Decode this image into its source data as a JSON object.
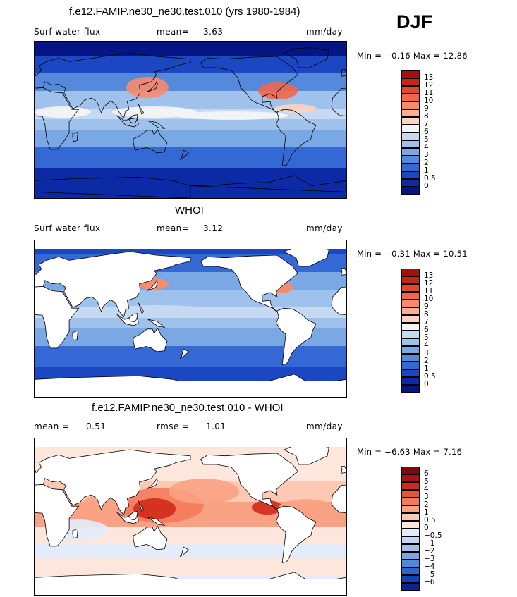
{
  "season": "DJF",
  "chart_data": [
    {
      "type": "heatmap",
      "title": "f.e12.FAMIP.ne30_ne30.test.010 (yrs 1980-1984)",
      "variable": "Surf water flux",
      "stat_label": "mean=",
      "stat_value": "3.63",
      "units": "mm/day",
      "min_label": "Min =",
      "min_value": "−0.16",
      "max_label": "Max =",
      "max_value": "12.86",
      "levels": [
        "13",
        "12",
        "11",
        "10",
        "9",
        "8",
        "7",
        "6",
        "5",
        "4",
        "3",
        "2",
        "1",
        "0.5",
        "0"
      ],
      "colors": [
        "#a50f0c",
        "#c9231a",
        "#e64530",
        "#f2674a",
        "#f88b6c",
        "#fcae93",
        "#fcd4c0",
        "#f5f5f5",
        "#c5d9f2",
        "#9fc2ec",
        "#7aa8e4",
        "#5489db",
        "#3468d4",
        "#1b47c2",
        "#0c2aa6",
        "#061584"
      ],
      "fill": "mixed",
      "land_masked": false
    },
    {
      "type": "heatmap",
      "title": "WHOI",
      "variable": "Surf water flux",
      "stat_label": "mean=",
      "stat_value": "3.12",
      "units": "mm/day",
      "min_label": "Min =",
      "min_value": "−0.31",
      "max_label": "Max =",
      "max_value": "10.51",
      "levels": [
        "13",
        "12",
        "11",
        "10",
        "9",
        "8",
        "7",
        "6",
        "5",
        "4",
        "3",
        "2",
        "1",
        "0.5",
        "0"
      ],
      "colors": [
        "#a50f0c",
        "#c9231a",
        "#e64530",
        "#f2674a",
        "#f88b6c",
        "#fcae93",
        "#fcd4c0",
        "#f5f5f5",
        "#c5d9f2",
        "#9fc2ec",
        "#7aa8e4",
        "#5489db",
        "#3468d4",
        "#1b47c2",
        "#0c2aa6",
        "#061584"
      ],
      "fill": "blue",
      "land_masked": true
    },
    {
      "type": "heatmap",
      "title": "f.e12.FAMIP.ne30_ne30.test.010 - WHOI",
      "stat_label": "mean =",
      "stat_value": "0.51",
      "stat2_label": "rmse =",
      "stat2_value": "1.01",
      "units": "mm/day",
      "min_label": "Min =",
      "min_value": "−6.63",
      "max_label": "Max =",
      "max_value": "7.16",
      "levels": [
        "6",
        "5",
        "4",
        "3",
        "2",
        "1",
        "0.5",
        "0",
        "−0.5",
        "−1",
        "−2",
        "−3",
        "−4",
        "−5",
        "−6"
      ],
      "colors": [
        "#7d0a0a",
        "#a81410",
        "#d12a1c",
        "#e8533c",
        "#f47a5c",
        "#f9a283",
        "#fdc9b3",
        "#fde7dc",
        "#e3ecf8",
        "#c6d8f1",
        "#a2c0ea",
        "#7ba4e2",
        "#5385d9",
        "#2f62cc",
        "#1840b5",
        "#0a2492"
      ],
      "fill": "red",
      "land_masked": true
    }
  ]
}
